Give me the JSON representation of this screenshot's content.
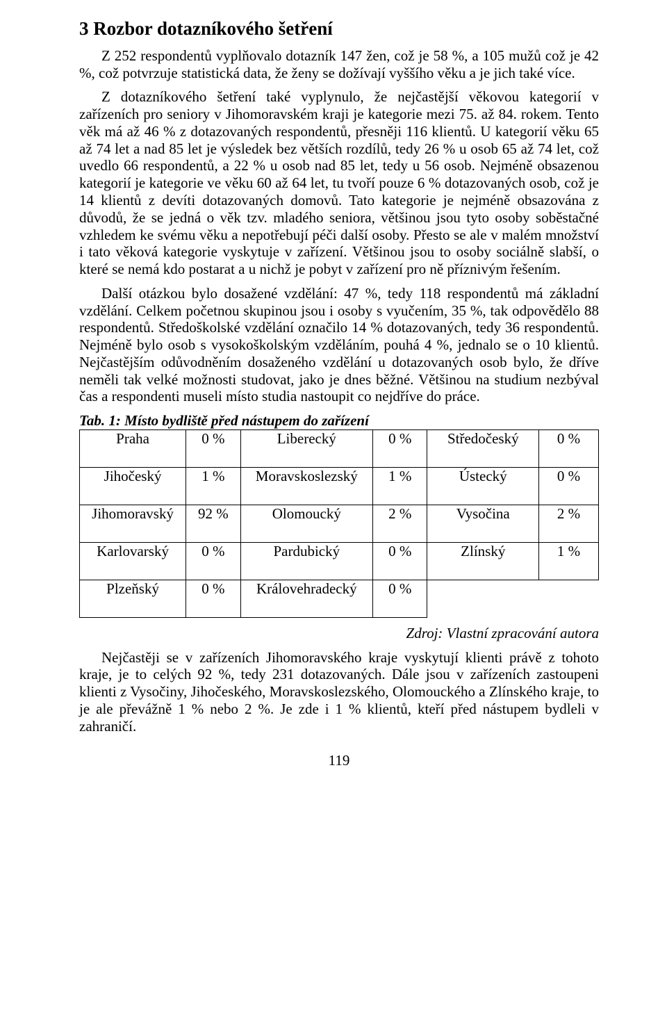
{
  "heading": "3  Rozbor dotazníkového šetření",
  "para1": "Z 252 respondentů vyplňovalo dotazník 147 žen, což je 58 %, a 105 mužů což je 42 %, což potvrzuje statistická data, že ženy se dožívají vyššího věku a je jich také více.",
  "para2": "Z dotazníkového šetření také vyplynulo, že nejčastější věkovou kategorií v zařízeních pro seniory v Jihomoravském kraji je kategorie mezi 75. až 84. rokem. Tento věk má až 46 % z dotazovaných respondentů, přesněji 116 klientů. U kategorií věku 65 až 74 let a nad 85 let je výsledek bez větších rozdílů, tedy 26 % u osob 65 až 74 let, což uvedlo 66 respondentů, a 22 % u osob nad 85 let, tedy u 56 osob. Nejméně obsazenou kategorií je kategorie ve věku 60 až 64 let, tu tvoří pouze 6 % dotazovaných osob, což je 14 klientů z devíti dotazovaných domovů. Tato kategorie je nejméně obsazována z důvodů, že se jedná o věk tzv. mladého seniora, většinou jsou tyto osoby soběstačné vzhledem ke svému věku a nepotřebují péči další osoby. Přesto se ale v malém množství i tato věková kategorie vyskytuje v zařízení. Většinou jsou to osoby sociálně slabší, o které se nemá kdo postarat a u nichž je pobyt v zařízení pro ně příznivým řešením.",
  "para3": "Další otázkou bylo dosažené vzdělání: 47 %, tedy 118 respondentů má základní vzdělání. Celkem početnou skupinou jsou i osoby s vyučením, 35 %, tak odpovědělo 88 respondentů. Středoškolské vzdělání označilo 14 % dotazovaných, tedy 36 respondentů. Nejméně bylo osob s vysokoškolským vzděláním, pouhá 4 %, jednalo se o 10 klientů. Nejčastějším odůvodněním dosaženého vzdělání u dotazovaných osob bylo, že dříve neměli tak velké možnosti studovat, jako je dnes běžné. Většinou na studium nezbýval čas a respondenti museli místo studia nastoupit co nejdříve do práce.",
  "tableCaption": "Tab. 1: Místo bydliště před nástupem do zařízení",
  "table": {
    "rows": [
      [
        "Praha",
        "0 %",
        "Liberecký",
        "0 %",
        "Středočeský",
        "0 %"
      ],
      [
        "Jihočeský",
        "1 %",
        "Moravskoslezský",
        "1 %",
        "Ústecký",
        "0 %"
      ],
      [
        "Jihomoravský",
        "92 %",
        "Olomoucký",
        "2 %",
        "Vysočina",
        "2 %"
      ],
      [
        "Karlovarský",
        "0 %",
        "Pardubický",
        "0 %",
        "Zlínský",
        "1 %"
      ],
      [
        "Plzeňský",
        "0 %",
        "Královehradecký",
        "0 %",
        "",
        ""
      ]
    ]
  },
  "sourceLine": "Zdroj: Vlastní zpracování autora",
  "para4": "Nejčastěji se v zařízeních Jihomoravského kraje vyskytují klienti právě z tohoto kraje, je to celých 92 %, tedy 231 dotazovaných. Dále jsou v zařízeních zastoupeni klienti z Vysočiny, Jihočeského, Moravskoslezského, Olomouckého a Zlínského kraje, to je ale převážně 1 % nebo 2 %. Je zde i 1 % klientů, kteří před nástupem bydleli v zahraničí.",
  "pageNumber": "119"
}
